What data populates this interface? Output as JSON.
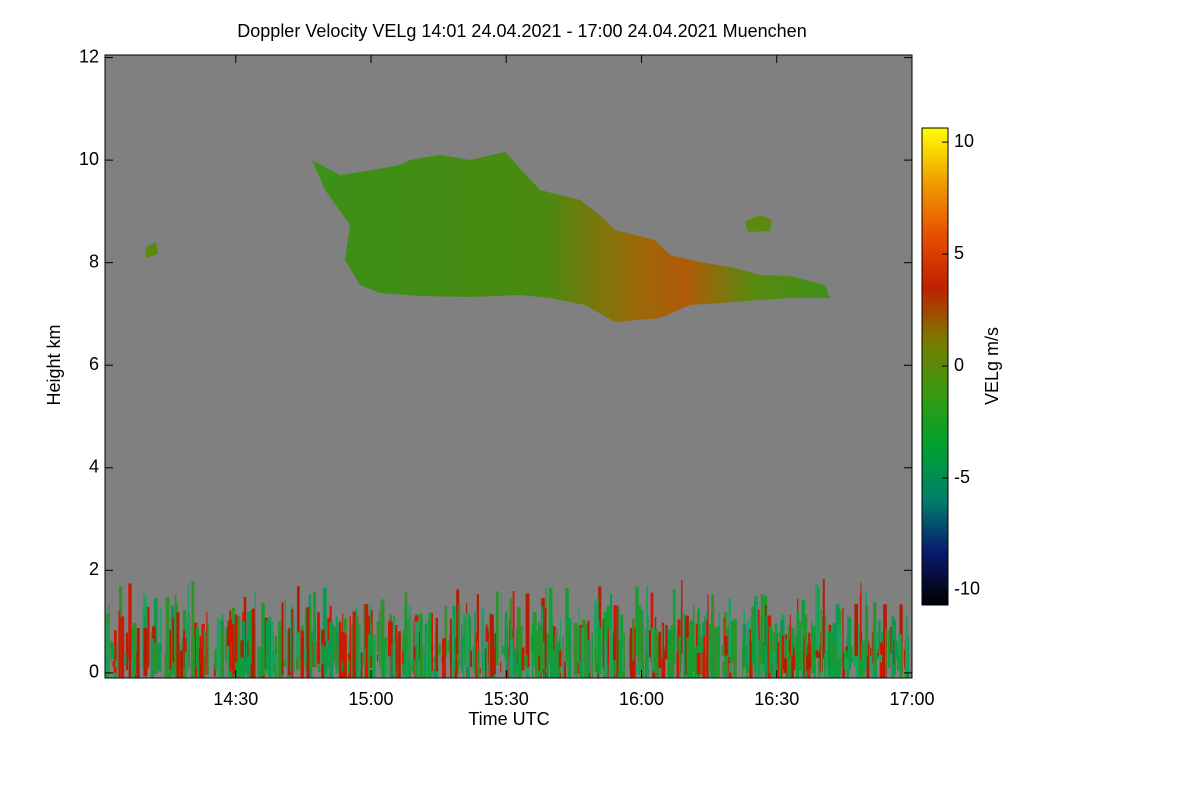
{
  "chart_data": {
    "type": "heatmap",
    "title": "Doppler Velocity VELg   14:01 24.04.2021 - 17:00 24.04.2021 Muenchen",
    "x_label": "Time UTC",
    "y_label": "Height km",
    "xlim": [
      14.0167,
      17.0
    ],
    "xticks": [
      {
        "value": 14.5,
        "label": "14:30"
      },
      {
        "value": 15.0,
        "label": "15:00"
      },
      {
        "value": 15.5,
        "label": "15:30"
      },
      {
        "value": 16.0,
        "label": "16:00"
      },
      {
        "value": 16.5,
        "label": "16:30"
      },
      {
        "value": 17.0,
        "label": "17:00"
      }
    ],
    "ylim": [
      -0.1,
      12.05
    ],
    "yticks": [
      0,
      2,
      4,
      6,
      8,
      10,
      12
    ],
    "colorbar_label": "VELg m/s",
    "clim": [
      -10.67,
      10.63
    ],
    "cticks": [
      -10,
      -5,
      0,
      5,
      10
    ],
    "colormap": [
      "#000000",
      "#0a1a6e",
      "#00806a",
      "#00a030",
      "#3a9a10",
      "#7a7a00",
      "#c02000",
      "#e85000",
      "#f0a000",
      "#ffff00"
    ],
    "background_color": "#808080"
  }
}
